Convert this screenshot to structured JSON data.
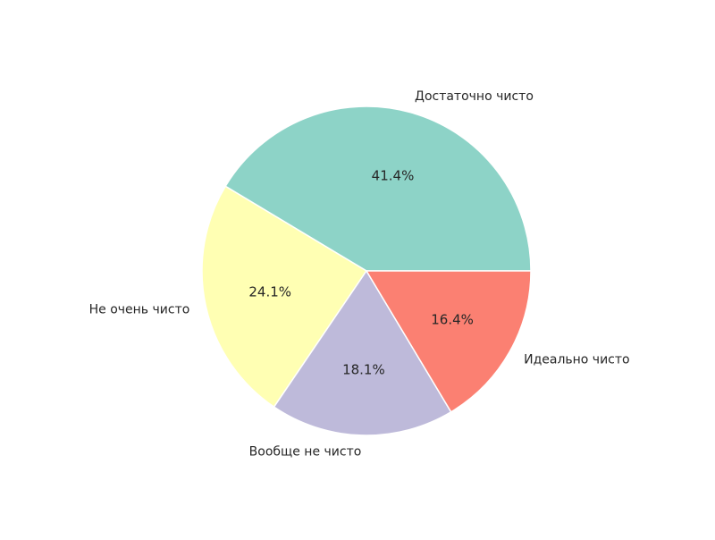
{
  "chart_data": {
    "type": "pie",
    "categories": [
      "Достаточно чисто",
      "Не очень чисто",
      "Вообще не чисто",
      "Идеально чисто"
    ],
    "values": [
      41.4,
      24.1,
      18.1,
      16.4
    ],
    "percent_labels": [
      "41.4%",
      "24.1%",
      "18.1%",
      "16.4%"
    ],
    "colors": [
      "#8dd3c7",
      "#ffffb3",
      "#bebada",
      "#fb8072"
    ],
    "start_angle_deg": 0,
    "direction": "counterclockwise",
    "edge_color": "#ffffff",
    "legend": "none"
  }
}
